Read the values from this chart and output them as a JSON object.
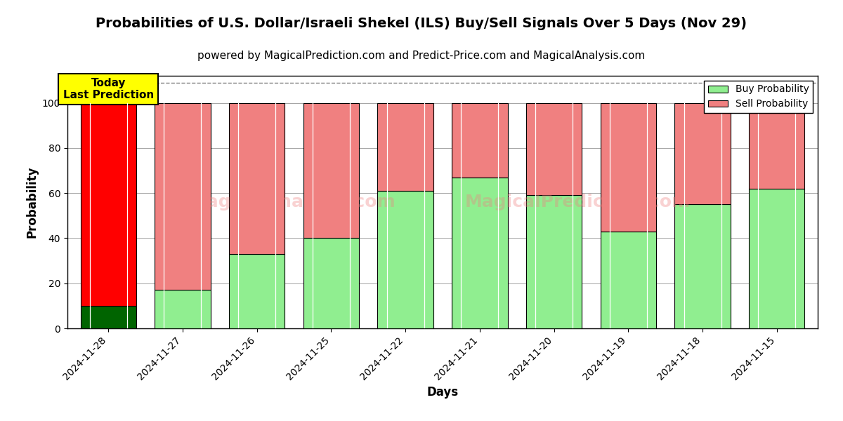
{
  "title": "Probabilities of U.S. Dollar/Israeli Shekel (ILS) Buy/Sell Signals Over 5 Days (Nov 29)",
  "subtitle": "powered by MagicalPrediction.com and Predict-Price.com and MagicalAnalysis.com",
  "xlabel": "Days",
  "ylabel": "Probability",
  "categories": [
    "2024-11-28",
    "2024-11-27",
    "2024-11-26",
    "2024-11-25",
    "2024-11-22",
    "2024-11-21",
    "2024-11-20",
    "2024-11-19",
    "2024-11-18",
    "2024-11-15"
  ],
  "buy_values": [
    10,
    17,
    33,
    40,
    61,
    67,
    59,
    43,
    55,
    62
  ],
  "sell_values": [
    90,
    83,
    67,
    60,
    39,
    33,
    41,
    57,
    45,
    38
  ],
  "today_buy_color": "#006400",
  "today_sell_color": "#ff0000",
  "buy_color": "#90ee90",
  "sell_color": "#f08080",
  "today_box_color": "#ffff00",
  "today_box_text": "Today\nLast Prediction",
  "ylim": [
    0,
    112
  ],
  "yticks": [
    0,
    20,
    40,
    60,
    80,
    100
  ],
  "dashed_line_y": 109,
  "legend_buy_label": "Buy Probability",
  "legend_sell_label": "Sell Probability",
  "title_fontsize": 14,
  "subtitle_fontsize": 11,
  "axis_label_fontsize": 12,
  "tick_fontsize": 10,
  "bar_width": 0.75
}
